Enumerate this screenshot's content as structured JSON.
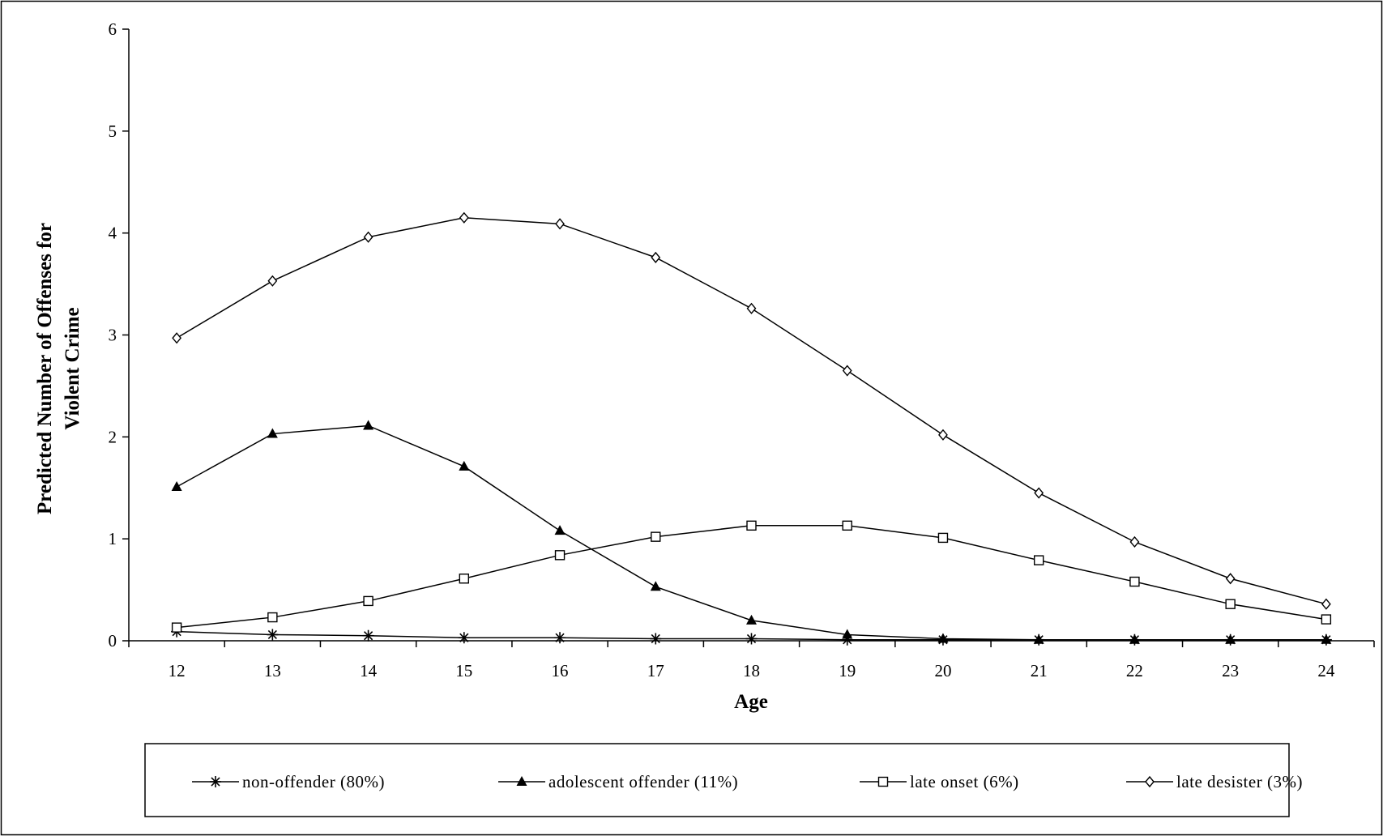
{
  "chart_data": {
    "type": "line",
    "title": "",
    "xlabel": "Age",
    "ylabel_lines": [
      "Predicted Number of Offenses for",
      "Violent Crime"
    ],
    "x": [
      12,
      13,
      14,
      15,
      16,
      17,
      18,
      19,
      20,
      21,
      22,
      23,
      24
    ],
    "xlim": [
      11.5,
      24.5
    ],
    "ylim": [
      0,
      6
    ],
    "yticks": [
      0,
      1,
      2,
      3,
      4,
      5,
      6
    ],
    "grid": false,
    "legend_position": "bottom",
    "series": [
      {
        "name": "non-offender (80%)",
        "marker": "asterisk",
        "values": [
          0.09,
          0.06,
          0.05,
          0.03,
          0.03,
          0.02,
          0.02,
          0.01,
          0.01,
          0.01,
          0.01,
          0.01,
          0.01
        ]
      },
      {
        "name": "adolescent offender (11%)",
        "marker": "filled-triangle",
        "values": [
          1.51,
          2.03,
          2.11,
          1.71,
          1.08,
          0.53,
          0.2,
          0.06,
          0.02,
          0.01,
          0.01,
          0.01,
          0.01
        ]
      },
      {
        "name": "late onset (6%)",
        "marker": "open-square",
        "values": [
          0.13,
          0.23,
          0.39,
          0.61,
          0.84,
          1.02,
          1.13,
          1.13,
          1.01,
          0.79,
          0.58,
          0.36,
          0.21
        ]
      },
      {
        "name": "late desister (3%)",
        "marker": "open-diamond",
        "values": [
          2.97,
          3.53,
          3.96,
          4.15,
          4.09,
          3.76,
          3.26,
          2.65,
          2.02,
          1.45,
          0.97,
          0.61,
          0.36
        ]
      }
    ]
  }
}
